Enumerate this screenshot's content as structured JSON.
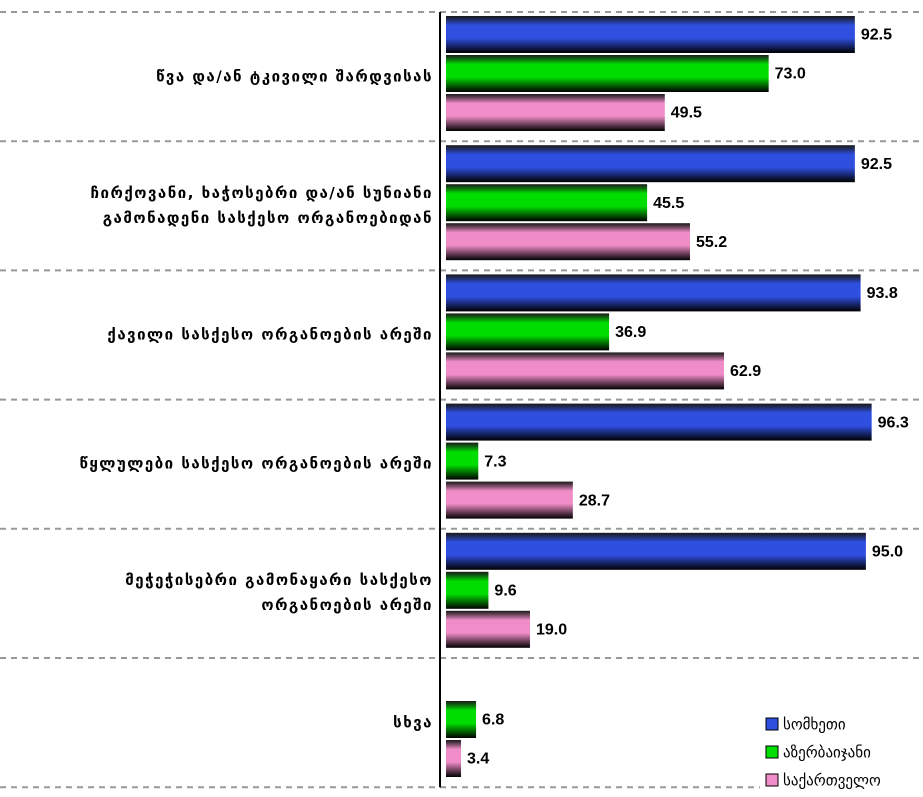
{
  "chart_data": {
    "type": "bar",
    "orientation": "horizontal",
    "categories": [
      "წვა და/ან ტკივილი შარდვისას",
      "ჩირქოვანი, ხაჭოსებრი და/ან სუნიანი\nგამონადენი სასქესო ორგანოებიდან",
      "ქავილი სასქესო ორგანოების არეში",
      "წყლულები სასქესო ორგანოების არეში",
      "მეჭეჭისებრი გამონაყარი სასქესო\nორგანოების არეში",
      "სხვა"
    ],
    "series": [
      {
        "name": "სომხეთი",
        "color": "#2f4fe0",
        "values": [
          92.5,
          92.5,
          93.8,
          96.3,
          95.0,
          null
        ],
        "value_labels": [
          "92.5",
          "92.5",
          "93.8",
          "96.3",
          "95.0",
          null
        ]
      },
      {
        "name": "აზერბაიჯანი",
        "color": "#00dd00",
        "values": [
          73.0,
          45.5,
          36.9,
          7.3,
          9.6,
          6.8
        ],
        "value_labels": [
          "73.0",
          "45.5",
          "36.9",
          "7.3",
          "9.6",
          "6.8"
        ]
      },
      {
        "name": "საქართველო",
        "color": "#f08cc8",
        "values": [
          49.5,
          55.2,
          62.9,
          28.7,
          19.0,
          3.4
        ],
        "value_labels": [
          "49.5",
          "55.2",
          "62.9",
          "28.7",
          "19.0",
          "3.4"
        ]
      }
    ],
    "legend": "bottom-right"
  }
}
